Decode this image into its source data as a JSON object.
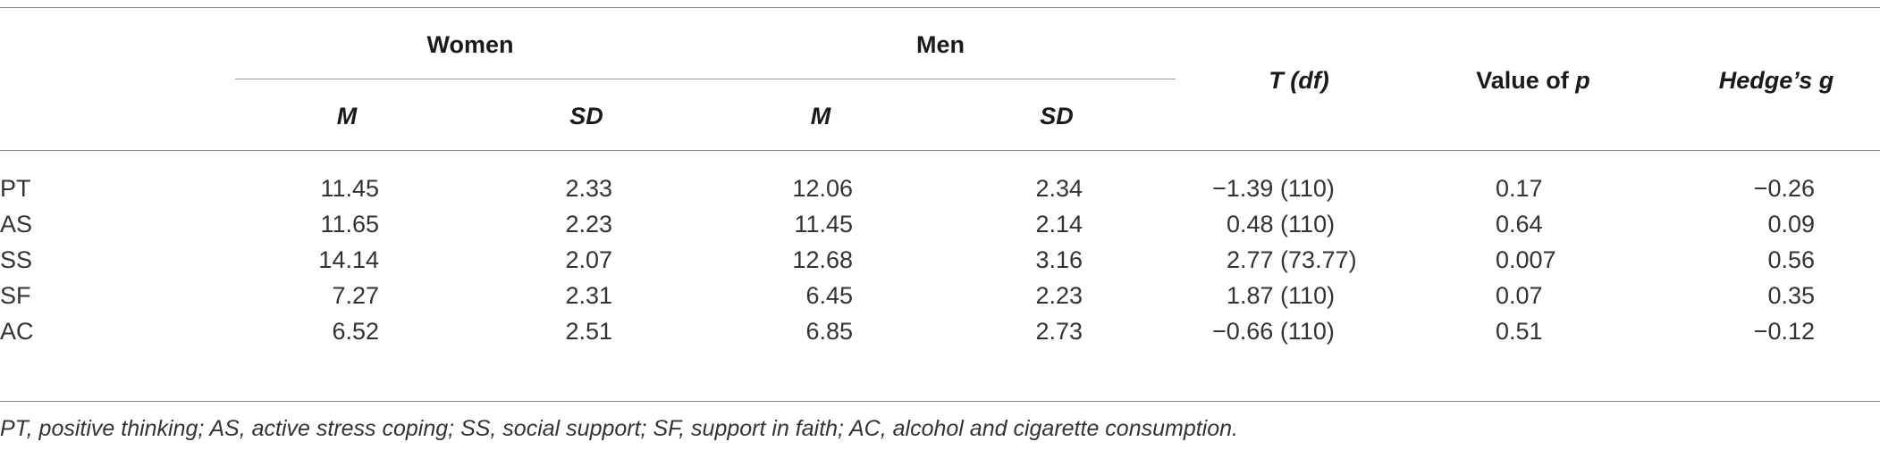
{
  "table": {
    "group_headers": {
      "women": "Women",
      "men": "Men"
    },
    "sub_headers": {
      "women_m": "M",
      "women_sd": "SD",
      "men_m": "M",
      "men_sd": "SD"
    },
    "headers": {
      "t_df": "T (df)",
      "p_value_prefix": "Value of ",
      "p_value_italic": "p",
      "hedges_g": "Hedge’s g"
    },
    "rows": [
      {
        "label": "PT",
        "women_m": "11.45",
        "women_sd": "2.33",
        "men_m": "12.06",
        "men_sd": "2.34",
        "t_df": "−1.39 (110)",
        "p": "0.17",
        "g": "−0.26"
      },
      {
        "label": "AS",
        "women_m": "11.65",
        "women_sd": "2.23",
        "men_m": "11.45",
        "men_sd": "2.14",
        "t_df": "0.48 (110)",
        "p": "0.64",
        "g": "0.09"
      },
      {
        "label": "SS",
        "women_m": "14.14",
        "women_sd": "2.07",
        "men_m": "12.68",
        "men_sd": "3.16",
        "t_df": "2.77 (73.77)",
        "p": "0.007",
        "g": "0.56"
      },
      {
        "label": "SF",
        "women_m": "7.27",
        "women_sd": "2.31",
        "men_m": "6.45",
        "men_sd": "2.23",
        "t_df": "1.87 (110)",
        "p": "0.07",
        "g": "0.35"
      },
      {
        "label": "AC",
        "women_m": "6.52",
        "women_sd": "2.51",
        "men_m": "6.85",
        "men_sd": "2.73",
        "t_df": "−0.66 (110)",
        "p": "0.51",
        "g": "−0.12"
      }
    ],
    "footnote": "PT, positive thinking; AS, active stress coping; SS, social support; SF, support in faith; AC, alcohol and cigarette consumption."
  }
}
